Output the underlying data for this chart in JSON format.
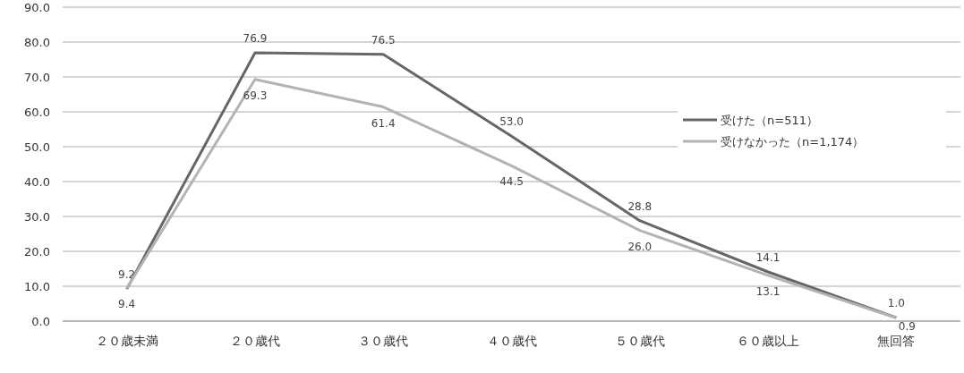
{
  "chart_data": {
    "type": "line",
    "categories": [
      "２０歳未満",
      "２０歳代",
      "３０歳代",
      "４０歳代",
      "５０歳代",
      "６０歳以上",
      "無回答"
    ],
    "series": [
      {
        "name": "受けた（n=511）",
        "color": "#666666",
        "values": [
          9.2,
          76.9,
          76.5,
          53.0,
          28.8,
          14.1,
          1.0
        ],
        "value_labels": [
          "9.2",
          "76.9",
          "76.5",
          "53.0",
          "28.8",
          "14.1",
          "1.0"
        ]
      },
      {
        "name": "受けなかった（n=1,174）",
        "color": "#b3b3b3",
        "values": [
          9.4,
          69.3,
          61.4,
          44.5,
          26.0,
          13.1,
          0.9
        ],
        "value_labels": [
          "9.4",
          "69.3",
          "61.4",
          "44.5",
          "26.0",
          "13.1",
          "0.9"
        ]
      }
    ],
    "ylim": [
      0,
      90
    ],
    "yticks": [
      {
        "value": 0,
        "label": "0.0"
      },
      {
        "value": 10,
        "label": "10.0"
      },
      {
        "value": 20,
        "label": "20.0"
      },
      {
        "value": 30,
        "label": "30.0"
      },
      {
        "value": 40,
        "label": "40.0"
      },
      {
        "value": 50,
        "label": "50.0"
      },
      {
        "value": 60,
        "label": "60.0"
      },
      {
        "value": 70,
        "label": "70.0"
      },
      {
        "value": 80,
        "label": "80.0"
      },
      {
        "value": 90,
        "label": "90.0"
      }
    ],
    "grid": "y",
    "legend": "top right",
    "marker": "none",
    "line_style": "solid"
  }
}
